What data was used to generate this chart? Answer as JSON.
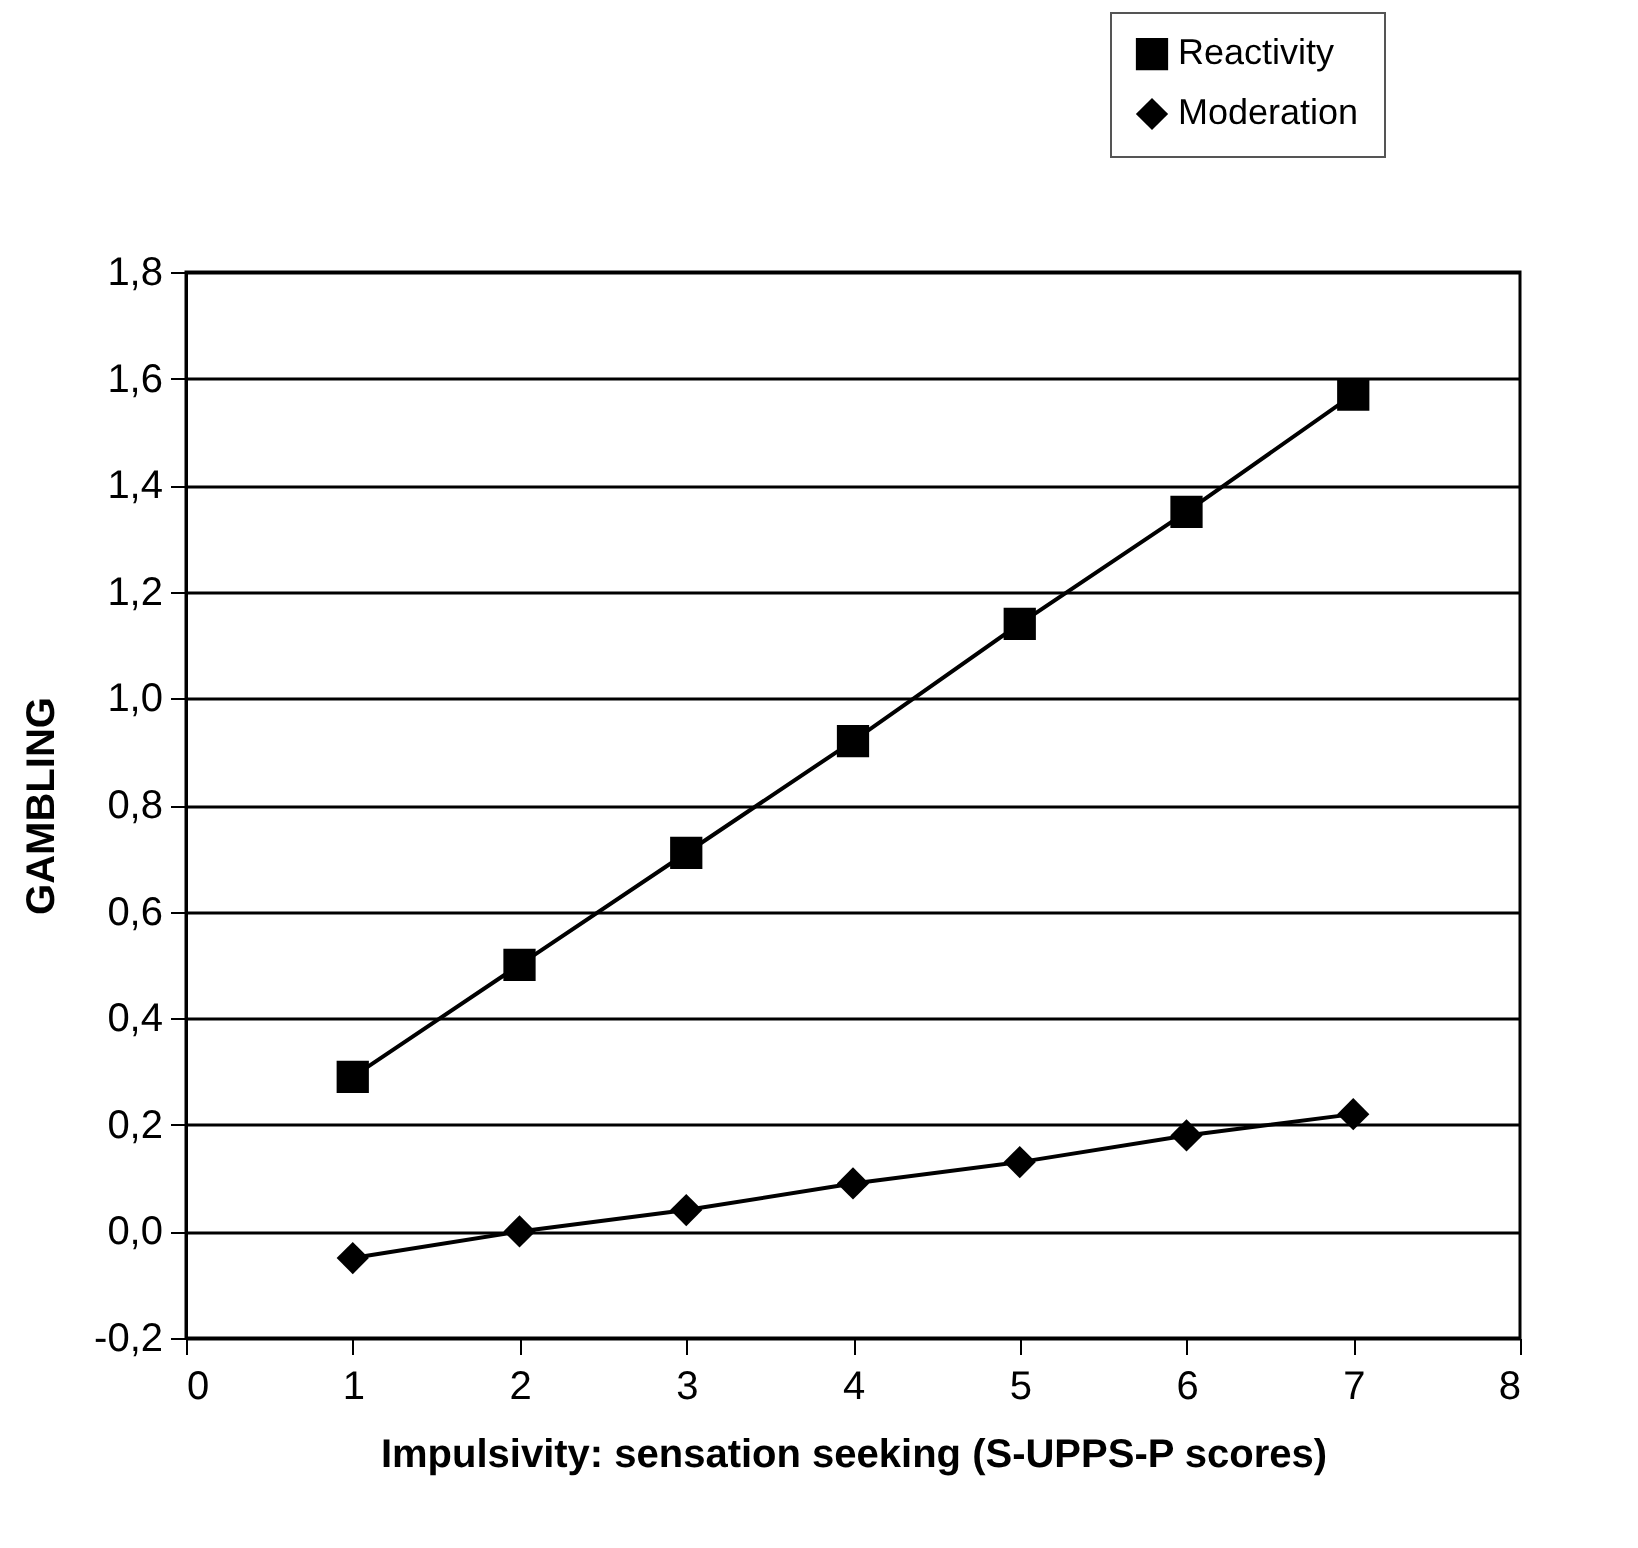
{
  "chart_data": {
    "type": "line",
    "xlabel": "Impulsivity: sensation seeking (S-UPPS-P scores)",
    "ylabel": "GAMBLING",
    "x": [
      1,
      2,
      3,
      4,
      5,
      6,
      7
    ],
    "series": [
      {
        "name": "Reactivity",
        "color": "#000000",
        "marker": "square",
        "values": [
          0.29,
          0.5,
          0.71,
          0.92,
          1.14,
          1.35,
          1.57
        ]
      },
      {
        "name": "Moderation",
        "color": "#000000",
        "marker": "diamond",
        "values": [
          -0.05,
          0.0,
          0.04,
          0.09,
          0.13,
          0.18,
          0.22
        ]
      }
    ],
    "xlim": [
      0,
      8
    ],
    "xticks": [
      0,
      1,
      2,
      3,
      4,
      5,
      6,
      7,
      8
    ],
    "ylim": [
      -0.2,
      1.8
    ],
    "yticks": [
      {
        "value": -0.2,
        "label": "-0,2"
      },
      {
        "value": 0,
        "label": "0,0"
      },
      {
        "value": 0.2,
        "label": "0,2"
      },
      {
        "value": 0.4,
        "label": "0,4"
      },
      {
        "value": 0.6,
        "label": "0,6"
      },
      {
        "value": 0.8,
        "label": "0,8"
      },
      {
        "value": 1.0,
        "label": "1,0"
      },
      {
        "value": 1.2,
        "label": "1,2"
      },
      {
        "value": 1.4,
        "label": "1,4"
      },
      {
        "value": 1.6,
        "label": "1,6"
      },
      {
        "value": 1.8,
        "label": "1,8"
      }
    ],
    "grid": "y",
    "legend": "top right",
    "line_style": "solid"
  }
}
